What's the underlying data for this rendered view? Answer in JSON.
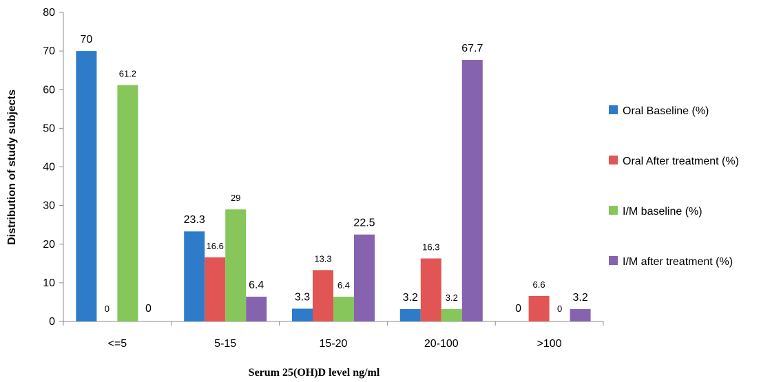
{
  "chart_data": {
    "type": "bar",
    "categories": [
      "<=5",
      "5-15",
      "15-20",
      "20-100",
      ">100"
    ],
    "series": [
      {
        "name": "Oral Baseline (%)",
        "color": "#2E7BC9",
        "values": [
          70,
          23.3,
          3.3,
          3.2,
          0
        ],
        "labels": [
          "70",
          "23.3",
          "3.3",
          "3.2",
          "0"
        ]
      },
      {
        "name": "Oral After treatment (%)",
        "color": "#E15554",
        "values": [
          0,
          16.6,
          13.3,
          16.3,
          6.6
        ],
        "labels": [
          "0",
          "16.6",
          "13.3",
          "16.3",
          "6.6"
        ]
      },
      {
        "name": "I/M baseline (%)",
        "color": "#86C65A",
        "values": [
          61.2,
          29,
          6.4,
          3.2,
          0
        ],
        "labels": [
          "61.2",
          "29",
          "6.4",
          "3.2",
          "0"
        ]
      },
      {
        "name": "I/M after treatment (%)",
        "color": "#8663AF",
        "values": [
          0,
          6.4,
          22.5,
          67.7,
          3.2
        ],
        "labels": [
          "0",
          "6.4",
          "22.5",
          "67.7",
          "3.2"
        ]
      }
    ],
    "yticks": [
      "0",
      "10",
      "20",
      "30",
      "40",
      "50",
      "60",
      "70",
      "80"
    ],
    "ylim": [
      0,
      80
    ],
    "xlabel": "Serum 25(OH)D level ng/ml",
    "ylabel": "Distribution of study subjects",
    "legend_position": "right",
    "grid": false
  }
}
